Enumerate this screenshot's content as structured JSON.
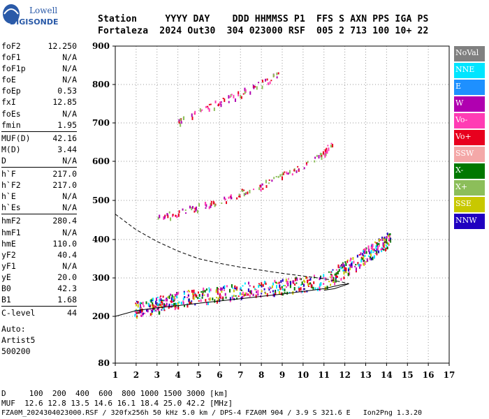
{
  "logo": {
    "line1": "Lowell",
    "line2": "DIGISONDE"
  },
  "header": {
    "labels": "Station     YYYY DAY    DDD HHMMSS P1  FFS S AXN PPS IGA PS",
    "values": "Fortaleza  2024 Out30  304 023000 RSF  005 2 713 100 10+ 22"
  },
  "params": [
    {
      "k": "foF2",
      "v": "12.250"
    },
    {
      "k": "foF1",
      "v": "N/A"
    },
    {
      "k": "foF1p",
      "v": "N/A"
    },
    {
      "k": "foE",
      "v": "N/A"
    },
    {
      "k": "foEp",
      "v": "0.53"
    },
    {
      "k": "fxI",
      "v": "12.85"
    },
    {
      "k": "foEs",
      "v": "N/A"
    },
    {
      "k": "fmin",
      "v": "1.95"
    },
    {
      "k": "MUF(D)",
      "v": "42.16"
    },
    {
      "k": "M(D)",
      "v": "3.44"
    },
    {
      "k": "D",
      "v": "N/A"
    },
    {
      "k": "h`F",
      "v": "217.0"
    },
    {
      "k": "h`F2",
      "v": "217.0"
    },
    {
      "k": "h`E",
      "v": "N/A"
    },
    {
      "k": "h`Es",
      "v": "N/A"
    },
    {
      "k": "hmF2",
      "v": "280.4"
    },
    {
      "k": "hmF1",
      "v": "N/A"
    },
    {
      "k": "hmE",
      "v": "110.0"
    },
    {
      "k": "yF2",
      "v": "40.4"
    },
    {
      "k": "yF1",
      "v": "N/A"
    },
    {
      "k": "yE",
      "v": "20.0"
    },
    {
      "k": "B0",
      "v": "42.3"
    },
    {
      "k": "B1",
      "v": "1.68"
    },
    {
      "k": "C-level",
      "v": "44"
    }
  ],
  "auto": {
    "l1": "Auto:",
    "l2": "Artist5",
    "l3": "500200"
  },
  "legend": [
    {
      "label": "NoVal",
      "color": "#808080"
    },
    {
      "label": "NNE",
      "color": "#00e5ff"
    },
    {
      "label": "E",
      "color": "#1e90ff"
    },
    {
      "label": "W",
      "color": "#b000b0"
    },
    {
      "label": "Vo-",
      "color": "#ff3cb4"
    },
    {
      "label": "Vo+",
      "color": "#e8001e"
    },
    {
      "label": "SSW",
      "color": "#f4a8a8"
    },
    {
      "label": "X-",
      "color": "#007800"
    },
    {
      "label": "X+",
      "color": "#8cbe5a"
    },
    {
      "label": "SSE",
      "color": "#c8c800"
    },
    {
      "label": "NNW",
      "color": "#2000c0"
    }
  ],
  "chart_data": {
    "type": "scatter",
    "xlim": [
      1,
      17
    ],
    "ylim": [
      80,
      900
    ],
    "x_ticks": [
      1,
      2,
      3,
      4,
      5,
      6,
      7,
      8,
      9,
      10,
      11,
      12,
      13,
      14,
      15,
      16,
      17
    ],
    "y_ticks": [
      80,
      200,
      300,
      400,
      500,
      600,
      700,
      800,
      900
    ],
    "grid": true,
    "series": [
      {
        "points": [
          [
            1.9,
            220
          ],
          [
            2.5,
            225
          ],
          [
            3,
            232
          ],
          [
            3.5,
            240
          ],
          [
            4,
            245
          ],
          [
            5,
            255
          ],
          [
            6,
            262
          ],
          [
            7,
            270
          ],
          [
            8,
            275
          ],
          [
            9,
            280
          ],
          [
            10,
            285
          ],
          [
            11,
            295
          ],
          [
            11.8,
            320
          ],
          [
            12.5,
            340
          ],
          [
            13.2,
            370
          ],
          [
            13.8,
            390
          ],
          [
            14.2,
            405
          ]
        ]
      },
      {
        "points": [
          [
            3,
            455
          ],
          [
            4,
            470
          ],
          [
            5,
            485
          ],
          [
            6,
            500
          ],
          [
            7,
            520
          ],
          [
            8,
            540
          ],
          [
            9,
            565
          ],
          [
            10,
            590
          ],
          [
            11,
            625
          ],
          [
            11.5,
            655
          ]
        ]
      },
      {
        "points": [
          [
            4,
            705
          ],
          [
            5,
            730
          ],
          [
            6,
            755
          ],
          [
            7,
            778
          ],
          [
            8,
            805
          ],
          [
            8.8,
            830
          ]
        ]
      }
    ],
    "profile_lower": [
      [
        1,
        200
      ],
      [
        2,
        215
      ],
      [
        3,
        222
      ],
      [
        4,
        228
      ],
      [
        5,
        234
      ],
      [
        6,
        240
      ],
      [
        7,
        246
      ],
      [
        8,
        252
      ],
      [
        9,
        258
      ],
      [
        10,
        265
      ],
      [
        11,
        272
      ],
      [
        11.8,
        282
      ],
      [
        12.2,
        285
      ],
      [
        11.5,
        272
      ],
      [
        11,
        268
      ]
    ],
    "profile_upper": [
      [
        1,
        465
      ],
      [
        1.5,
        445
      ],
      [
        2,
        425
      ],
      [
        3,
        395
      ],
      [
        4,
        370
      ],
      [
        5,
        350
      ],
      [
        6,
        338
      ],
      [
        7,
        328
      ],
      [
        8,
        320
      ],
      [
        9,
        312
      ],
      [
        10,
        305
      ],
      [
        11,
        298
      ],
      [
        11.8,
        290
      ],
      [
        12.2,
        285
      ]
    ]
  },
  "footer": {
    "d_row": "D     100  200  400  600  800 1000 1500 3000 [km]",
    "muf_row": "MUF  12.6 12.8 13.5 14.6 16.1 18.4 25.0 42.2 [MHz]",
    "file_row": "FZA0M_2024304023000.RSF / 320fx256h 50 kHz 5.0 km / DPS-4 FZA0M 904 / 3.9 S 321.6 E   Ion2Png 1.3.20"
  }
}
